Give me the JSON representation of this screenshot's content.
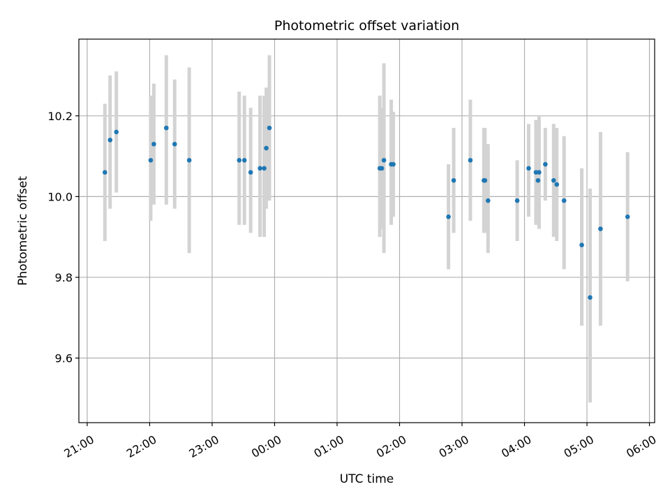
{
  "chart_data": {
    "type": "scatter",
    "title": "Photometric offset variation",
    "xlabel": "UTC time",
    "ylabel": "Photometric offset",
    "xlim": [
      "20:52",
      "30:05"
    ],
    "ylim": [
      9.44,
      10.39
    ],
    "y_ticks": [
      9.6,
      9.8,
      10.0,
      10.2
    ],
    "y_tick_labels": [
      "9.6",
      "9.8",
      "10.0",
      "10.2"
    ],
    "x_ticks": [
      "21:00",
      "22:00",
      "23:00",
      "24:00",
      "25:00",
      "26:00",
      "27:00",
      "28:00",
      "29:00",
      "30:00"
    ],
    "x_tick_labels": [
      "21:00",
      "22:00",
      "23:00",
      "00:00",
      "01:00",
      "02:00",
      "03:00",
      "04:00",
      "05:00",
      "06:00"
    ],
    "grid": true,
    "marker_color": "#1f77b4",
    "errorbar_color": "#d3d3d3",
    "series": [
      {
        "points": [
          {
            "t": "21:17",
            "y": 10.06,
            "lo": 9.89,
            "hi": 10.23
          },
          {
            "t": "21:22",
            "y": 10.14,
            "lo": 9.97,
            "hi": 10.3
          },
          {
            "t": "21:28",
            "y": 10.16,
            "lo": 10.01,
            "hi": 10.31
          },
          {
            "t": "22:01",
            "y": 10.09,
            "lo": 9.94,
            "hi": 10.25
          },
          {
            "t": "22:04",
            "y": 10.13,
            "lo": 9.98,
            "hi": 10.28
          },
          {
            "t": "22:16",
            "y": 10.17,
            "lo": 9.98,
            "hi": 10.35
          },
          {
            "t": "22:24",
            "y": 10.13,
            "lo": 9.97,
            "hi": 10.29
          },
          {
            "t": "22:38",
            "y": 10.09,
            "lo": 9.86,
            "hi": 10.32
          },
          {
            "t": "23:26",
            "y": 10.09,
            "lo": 9.93,
            "hi": 10.26
          },
          {
            "t": "23:31",
            "y": 10.09,
            "lo": 9.93,
            "hi": 10.25
          },
          {
            "t": "23:37",
            "y": 10.06,
            "lo": 9.91,
            "hi": 10.22
          },
          {
            "t": "23:46",
            "y": 10.07,
            "lo": 9.9,
            "hi": 10.25
          },
          {
            "t": "23:50",
            "y": 10.07,
            "lo": 9.9,
            "hi": 10.25
          },
          {
            "t": "23:52",
            "y": 10.12,
            "lo": 9.97,
            "hi": 10.27
          },
          {
            "t": "23:55",
            "y": 10.17,
            "lo": 9.99,
            "hi": 10.35
          },
          {
            "t": "25:41",
            "y": 10.07,
            "lo": 9.9,
            "hi": 10.25
          },
          {
            "t": "25:43",
            "y": 10.07,
            "lo": 9.92,
            "hi": 10.22
          },
          {
            "t": "25:45",
            "y": 10.09,
            "lo": 9.86,
            "hi": 10.33
          },
          {
            "t": "25:52",
            "y": 10.08,
            "lo": 9.93,
            "hi": 10.24
          },
          {
            "t": "25:54",
            "y": 10.08,
            "lo": 9.95,
            "hi": 10.21
          },
          {
            "t": "26:47",
            "y": 9.95,
            "lo": 9.82,
            "hi": 10.08
          },
          {
            "t": "26:52",
            "y": 10.04,
            "lo": 9.91,
            "hi": 10.17
          },
          {
            "t": "27:08",
            "y": 10.09,
            "lo": 9.94,
            "hi": 10.24
          },
          {
            "t": "27:21",
            "y": 10.04,
            "lo": 9.91,
            "hi": 10.17
          },
          {
            "t": "27:22",
            "y": 10.04,
            "lo": 9.91,
            "hi": 10.17
          },
          {
            "t": "27:25",
            "y": 9.99,
            "lo": 9.86,
            "hi": 10.13
          },
          {
            "t": "27:53",
            "y": 9.99,
            "lo": 9.89,
            "hi": 10.09
          },
          {
            "t": "28:04",
            "y": 10.07,
            "lo": 9.95,
            "hi": 10.18
          },
          {
            "t": "28:11",
            "y": 10.06,
            "lo": 9.93,
            "hi": 10.19
          },
          {
            "t": "28:13",
            "y": 10.04,
            "lo": 9.93,
            "hi": 10.15
          },
          {
            "t": "28:14",
            "y": 10.06,
            "lo": 9.92,
            "hi": 10.2
          },
          {
            "t": "28:20",
            "y": 10.08,
            "lo": 9.99,
            "hi": 10.17
          },
          {
            "t": "28:28",
            "y": 10.04,
            "lo": 9.9,
            "hi": 10.18
          },
          {
            "t": "28:31",
            "y": 10.03,
            "lo": 9.89,
            "hi": 10.17
          },
          {
            "t": "28:38",
            "y": 9.99,
            "lo": 9.82,
            "hi": 10.15
          },
          {
            "t": "28:55",
            "y": 9.88,
            "lo": 9.68,
            "hi": 10.07
          },
          {
            "t": "29:03",
            "y": 9.75,
            "lo": 9.49,
            "hi": 10.02
          },
          {
            "t": "29:13",
            "y": 9.92,
            "lo": 9.68,
            "hi": 10.16
          },
          {
            "t": "29:39",
            "y": 9.95,
            "lo": 9.79,
            "hi": 10.11
          }
        ]
      }
    ]
  }
}
